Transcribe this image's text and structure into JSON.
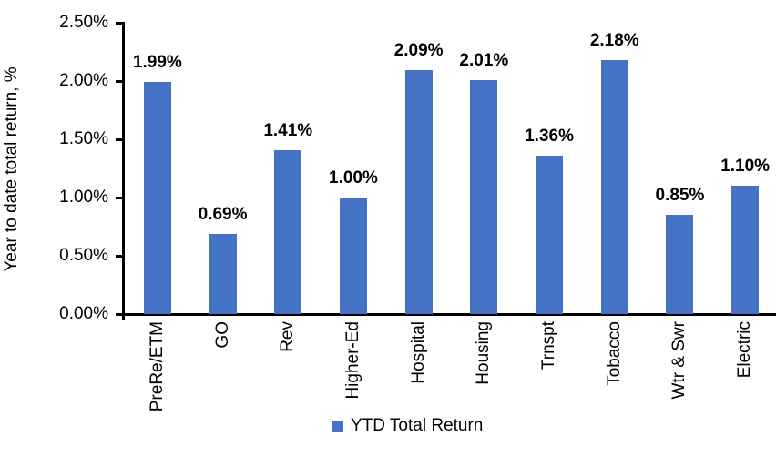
{
  "chart_data": {
    "type": "bar",
    "title": "",
    "xlabel": "",
    "ylabel": "Year to date total return, %",
    "categories": [
      "PreRe/ETM",
      "GO",
      "Rev",
      "Higher-Ed",
      "Hospital",
      "Housing",
      "Trnspt",
      "Tobacco",
      "Wtr & Swr",
      "Electric"
    ],
    "series": [
      {
        "name": "YTD Total Return",
        "values": [
          1.99,
          0.69,
          1.41,
          1.0,
          2.09,
          2.01,
          1.36,
          2.18,
          0.85,
          1.1
        ],
        "data_labels": [
          "1.99%",
          "0.69%",
          "1.41%",
          "1.00%",
          "2.09%",
          "2.01%",
          "1.36%",
          "2.18%",
          "0.85%",
          "1.10%"
        ]
      }
    ],
    "ylim": [
      0,
      2.5
    ],
    "yticks": [
      {
        "value": 0.0,
        "label": "0.00%"
      },
      {
        "value": 0.5,
        "label": "0.50%"
      },
      {
        "value": 1.0,
        "label": "1.00%"
      },
      {
        "value": 1.5,
        "label": "1.50%"
      },
      {
        "value": 2.0,
        "label": "2.00%"
      },
      {
        "value": 2.5,
        "label": "2.50%"
      }
    ],
    "grid": false,
    "legend": {
      "label": "YTD Total Return",
      "position": "bottom"
    },
    "colors": {
      "bar": "#4472c4",
      "axis": "#000000",
      "text": "#000000",
      "background": "#ffffff"
    }
  }
}
